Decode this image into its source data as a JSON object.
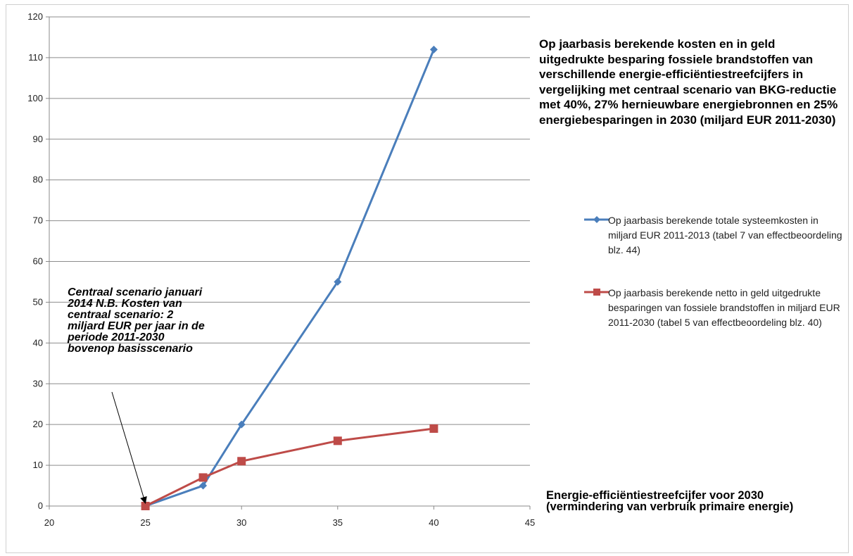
{
  "chart_data": {
    "type": "line",
    "title": "Op jaarbasis berekende kosten en in geld uitgedrukte besparing fossiele brandstoffen van verschillende energie-efficiëntiestreefcijfers in vergelijking met centraal scenario van BKG-reductie met 40%, 27%  hernieuwbare energiebronnen en 25% energiebesparingen in 2030 (miljard EUR 2011-2030)",
    "xlabel": "Energie-efficiëntiestreefcijfer  voor 2030 (vermindering van verbruik primaire energie)",
    "ylabel": "",
    "xlim": [
      20,
      45
    ],
    "ylim": [
      0,
      120
    ],
    "xticks": [
      20,
      25,
      30,
      35,
      40,
      45
    ],
    "yticks": [
      0,
      10,
      20,
      30,
      40,
      50,
      60,
      70,
      80,
      90,
      100,
      110,
      120
    ],
    "grid": "horizontal",
    "legend_position": "right",
    "series": [
      {
        "name": "Op jaarbasis berekende totale systeemkosten in miljard EUR 2011-2013 (tabel 7 van effectbeoordeling blz. 44)",
        "color": "#4a7ebb",
        "marker": "diamond",
        "x": [
          25,
          28,
          30,
          35,
          40
        ],
        "y": [
          0,
          5,
          20,
          55,
          112
        ]
      },
      {
        "name": "Op jaarbasis berekende netto in geld uitgedrukte besparingen van fossiele brandstoffen in miljard EUR 2011-2030 (tabel 5 van effectbeoordeling blz. 40)",
        "color": "#be4b48",
        "marker": "square",
        "x": [
          25,
          28,
          30,
          35,
          40
        ],
        "y": [
          0,
          7,
          11,
          16,
          19
        ]
      }
    ],
    "annotations": [
      {
        "text": "Centraal scenario januari 2014 N.B. Kosten van centraal scenario: 2 miljard EUR per jaar in de periode 2011-2030 bovenop basisscenario",
        "target_x": 25,
        "target_y": 0
      }
    ]
  }
}
